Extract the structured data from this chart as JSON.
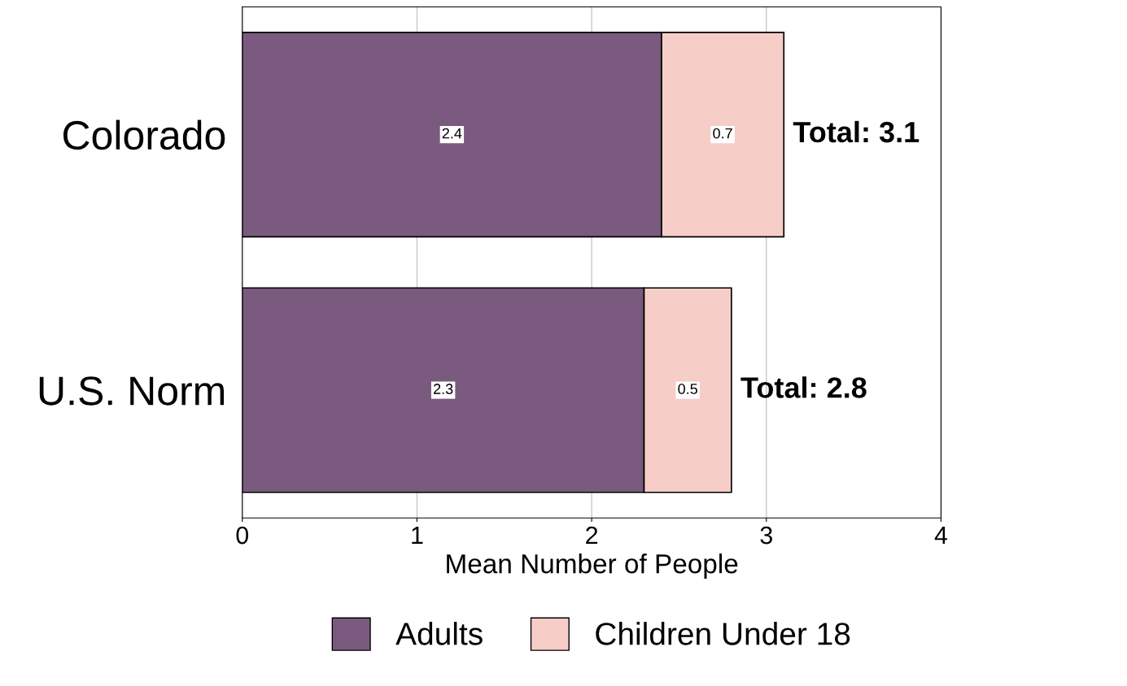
{
  "chart_data": {
    "type": "bar",
    "orientation": "horizontal",
    "stacked": true,
    "categories": [
      "Colorado",
      "U.S. Norm"
    ],
    "series": [
      {
        "name": "Adults",
        "color": "#7a5a7e",
        "values": [
          2.4,
          2.3
        ]
      },
      {
        "name": "Children Under 18",
        "color": "#f7cdc8",
        "values": [
          0.7,
          0.5
        ]
      }
    ],
    "xlabel": "Mean Number of People",
    "xlim": [
      0,
      4
    ],
    "xticks": [
      0,
      1,
      2,
      3,
      4
    ],
    "data_labels": true,
    "totals": [
      "Total: 3.1",
      "Total: 2.8"
    ],
    "grid": "x",
    "legend": "bottom"
  }
}
